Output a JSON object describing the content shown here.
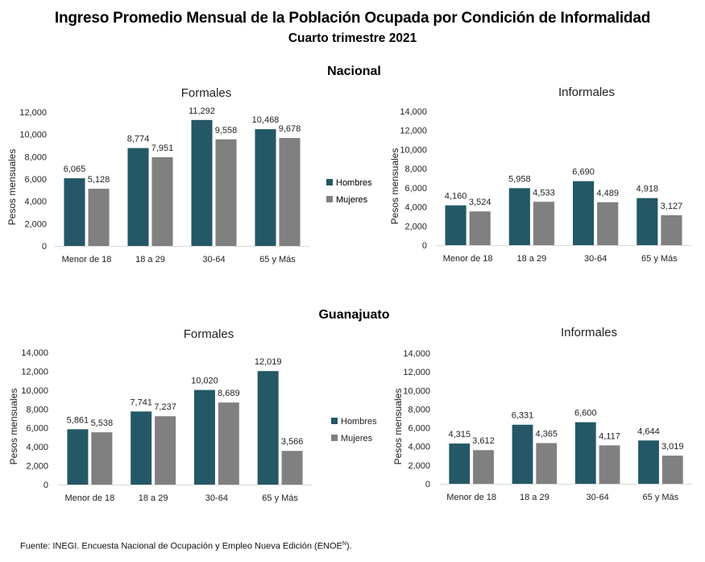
{
  "header": {
    "title": "Ingreso Promedio Mensual de la Población Ocupada por Condición de Informalidad",
    "subtitle": "Cuarto trimestre 2021"
  },
  "sections": {
    "nacional": "Nacional",
    "guanajuato": "Guanajuato"
  },
  "colors": {
    "hombres": "#245866",
    "mujeres": "#808080",
    "axis": "#d9d9d9",
    "text": "#222222"
  },
  "footer": {
    "source_prefix": "Fuente: INEGI. Encuesta Nacional de Ocupación y Empleo Nueva Edición (ENOE",
    "source_sup": "N",
    "source_suffix": ")."
  },
  "chart_data": [
    {
      "id": "nacional-formales",
      "type": "bar",
      "section": "Nacional",
      "title": "Formales",
      "xlabel": "",
      "ylabel": "Pesos mensuales",
      "ylim": [
        0,
        12000
      ],
      "yticks": [
        0,
        2000,
        4000,
        6000,
        8000,
        10000,
        12000
      ],
      "ytick_labels": [
        "0",
        "2,000",
        "4,000",
        "6,000",
        "8,000",
        "10,000",
        "12,000"
      ],
      "grid": false,
      "legend": "right",
      "categories": [
        "Menor de 18",
        "18 a 29",
        "30-64",
        "65 y Más"
      ],
      "series": [
        {
          "name": "Hombres",
          "values": [
            6065,
            8774,
            11292,
            10468
          ],
          "labels": [
            "6,065",
            "8,774",
            "11,292",
            "10,468"
          ]
        },
        {
          "name": "Mujeres",
          "values": [
            5128,
            7951,
            9558,
            9678
          ],
          "labels": [
            "5,128",
            "7,951",
            "9,558",
            "9,678"
          ]
        }
      ]
    },
    {
      "id": "nacional-informales",
      "type": "bar",
      "section": "Nacional",
      "title": "Informales",
      "xlabel": "",
      "ylabel": "Pesos mensuales",
      "ylim": [
        0,
        14000
      ],
      "yticks": [
        0,
        2000,
        4000,
        6000,
        8000,
        10000,
        12000,
        14000
      ],
      "ytick_labels": [
        "0",
        "2,000",
        "4,000",
        "6,000",
        "8,000",
        "10,000",
        "12,000",
        "14,000"
      ],
      "grid": false,
      "legend": "left",
      "categories": [
        "Menor de 18",
        "18 a 29",
        "30-64",
        "65 y Más"
      ],
      "series": [
        {
          "name": "Hombres",
          "values": [
            4160,
            5958,
            6690,
            4918
          ],
          "labels": [
            "4,160",
            "5,958",
            "6,690",
            "4,918"
          ]
        },
        {
          "name": "Mujeres",
          "values": [
            3524,
            4533,
            4489,
            3127
          ],
          "labels": [
            "3,524",
            "4,533",
            "4,489",
            "3,127"
          ]
        }
      ]
    },
    {
      "id": "guanajuato-formales",
      "type": "bar",
      "section": "Guanajuato",
      "title": "Formales",
      "xlabel": "",
      "ylabel": "Pesos mensuales",
      "ylim": [
        0,
        14000
      ],
      "yticks": [
        0,
        2000,
        4000,
        6000,
        8000,
        10000,
        12000,
        14000
      ],
      "ytick_labels": [
        "0",
        "2,000",
        "4,000",
        "6,000",
        "8,000",
        "10,000",
        "12,000",
        "14,000"
      ],
      "grid": false,
      "legend": "right",
      "categories": [
        "Menor de 18",
        "18 a 29",
        "30-64",
        "65 y Más"
      ],
      "series": [
        {
          "name": "Hombres",
          "values": [
            5861,
            7741,
            10020,
            12019
          ],
          "labels": [
            "5,861",
            "7,741",
            "10,020",
            "12,019"
          ]
        },
        {
          "name": "Mujeres",
          "values": [
            5538,
            7237,
            8689,
            3566
          ],
          "labels": [
            "5,538",
            "7,237",
            "8,689",
            "3,566"
          ]
        }
      ]
    },
    {
      "id": "guanajuato-informales",
      "type": "bar",
      "section": "Guanajuato",
      "title": "Informales",
      "xlabel": "",
      "ylabel": "Pesos mensuales",
      "ylim": [
        0,
        14000
      ],
      "yticks": [
        0,
        2000,
        4000,
        6000,
        8000,
        10000,
        12000,
        14000
      ],
      "ytick_labels": [
        "0",
        "2,000",
        "4,000",
        "6,000",
        "8,000",
        "10,000",
        "12,000",
        "14,000"
      ],
      "grid": false,
      "legend": "none",
      "categories": [
        "Menor de 18",
        "18 a 29",
        "30-64",
        "65 y Más"
      ],
      "series": [
        {
          "name": "Hombres",
          "values": [
            4315,
            6331,
            6600,
            4644
          ],
          "labels": [
            "4,315",
            "6,331",
            "6,600",
            "4,644"
          ]
        },
        {
          "name": "Mujeres",
          "values": [
            3612,
            4365,
            4117,
            3019
          ],
          "labels": [
            "3,612",
            "4,365",
            "4,117",
            "3,019"
          ]
        }
      ]
    }
  ]
}
